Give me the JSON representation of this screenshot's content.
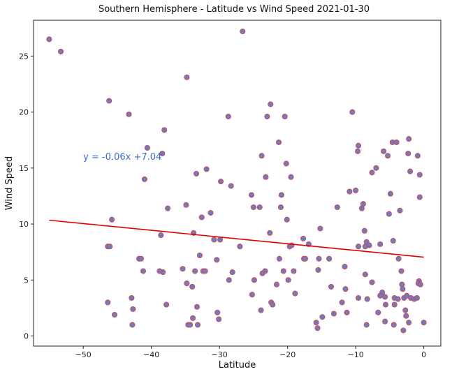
{
  "chart_data": {
    "type": "scatter",
    "title": "Southern Hemisphere - Latitude vs Wind Speed 2021-01-30",
    "xlabel": "Latitude",
    "ylabel": "Wind Speed",
    "xlim": [
      -57.3,
      2.5
    ],
    "ylim": [
      -0.9,
      28.2
    ],
    "xticks": [
      -50,
      -40,
      -30,
      -20,
      -10,
      0
    ],
    "yticks": [
      0,
      5,
      10,
      15,
      20,
      25
    ],
    "grid": false,
    "marker_color": "#6a7fb8",
    "marker_edge_color": "#e0405a",
    "line_color": "#e00000",
    "annotation": {
      "text": "y = -0.06x +7.04",
      "x": -50,
      "y": 16,
      "color": "#3a6bd0"
    },
    "regression": {
      "slope": -0.06,
      "intercept": 7.04,
      "x": [
        -55,
        0
      ]
    },
    "points": [
      [
        -55,
        26.5
      ],
      [
        -53.3,
        25.4
      ],
      [
        -46.2,
        21
      ],
      [
        -43.3,
        19.8
      ],
      [
        -46.4,
        8
      ],
      [
        -46.1,
        8
      ],
      [
        -45.8,
        10.4
      ],
      [
        -46.4,
        3
      ],
      [
        -45.4,
        1.9
      ],
      [
        -42.9,
        3.4
      ],
      [
        -42.7,
        2.4
      ],
      [
        -42.8,
        1
      ],
      [
        -41.8,
        6.9
      ],
      [
        -41.5,
        6.9
      ],
      [
        -41.2,
        5.8
      ],
      [
        -41,
        14
      ],
      [
        -40.6,
        16.8
      ],
      [
        -38.6,
        9
      ],
      [
        -38.3,
        5.7
      ],
      [
        -38.8,
        5.8
      ],
      [
        -38.1,
        18.4
      ],
      [
        -38.4,
        16.3
      ],
      [
        -37.6,
        11.4
      ],
      [
        -37.8,
        2.8
      ],
      [
        -35.4,
        6
      ],
      [
        -34.8,
        23.1
      ],
      [
        -34.9,
        11.7
      ],
      [
        -34.8,
        4.7
      ],
      [
        -34.6,
        1
      ],
      [
        -34.3,
        1
      ],
      [
        -34,
        4.4
      ],
      [
        -33.9,
        1.6
      ],
      [
        -33.8,
        9.2
      ],
      [
        -33.6,
        5.8
      ],
      [
        -33.4,
        14.5
      ],
      [
        -33.3,
        2.6
      ],
      [
        -33.2,
        1
      ],
      [
        -32.9,
        7.2
      ],
      [
        -32.6,
        10.6
      ],
      [
        -32.4,
        5.8
      ],
      [
        -32.1,
        5.8
      ],
      [
        -31.9,
        14.9
      ],
      [
        -31.3,
        11
      ],
      [
        -30.8,
        8.6
      ],
      [
        -30.3,
        2.1
      ],
      [
        -30.1,
        1.5
      ],
      [
        -30.4,
        6.8
      ],
      [
        -29.9,
        8.6
      ],
      [
        -29.8,
        13.8
      ],
      [
        -28.7,
        19.6
      ],
      [
        -28.6,
        5
      ],
      [
        -28.3,
        13.4
      ],
      [
        -28.1,
        5.7
      ],
      [
        -27,
        8
      ],
      [
        -26.6,
        27.2
      ],
      [
        -25.3,
        12.6
      ],
      [
        -25.2,
        3.7
      ],
      [
        -24.9,
        5
      ],
      [
        -25,
        11.5
      ],
      [
        -24.1,
        11.5
      ],
      [
        -23.9,
        2.3
      ],
      [
        -23.8,
        16.1
      ],
      [
        -23.7,
        5.6
      ],
      [
        -23.3,
        5.8
      ],
      [
        -23.2,
        14.2
      ],
      [
        -23,
        19.6
      ],
      [
        -22.6,
        9.2
      ],
      [
        -22.5,
        20.7
      ],
      [
        -22.4,
        3
      ],
      [
        -22.2,
        2.8
      ],
      [
        -21.6,
        4.6
      ],
      [
        -21.3,
        17.3
      ],
      [
        -21.2,
        6.9
      ],
      [
        -21,
        11.5
      ],
      [
        -20.9,
        12.6
      ],
      [
        -20.6,
        5.8
      ],
      [
        -20.4,
        19.6
      ],
      [
        -20.2,
        15.4
      ],
      [
        -20.1,
        10.4
      ],
      [
        -19.9,
        5
      ],
      [
        -19.7,
        8
      ],
      [
        -19.5,
        14.2
      ],
      [
        -19.4,
        8.1
      ],
      [
        -19.1,
        5.8
      ],
      [
        -18.9,
        3.8
      ],
      [
        -17.7,
        8.7
      ],
      [
        -17.6,
        6.9
      ],
      [
        -17.4,
        6.9
      ],
      [
        -16.9,
        8.2
      ],
      [
        -15.8,
        1.2
      ],
      [
        -15.6,
        0.7
      ],
      [
        -15.5,
        5.9
      ],
      [
        -15.4,
        6.9
      ],
      [
        -15.2,
        9.6
      ],
      [
        -14.9,
        1.7
      ],
      [
        -13.9,
        6.9
      ],
      [
        -13.6,
        4.4
      ],
      [
        -13.2,
        2
      ],
      [
        -12.7,
        11.5
      ],
      [
        -12,
        3
      ],
      [
        -11.6,
        6.2
      ],
      [
        -11.5,
        4.2
      ],
      [
        -10.9,
        12.9
      ],
      [
        -10.5,
        20
      ],
      [
        -10,
        13
      ],
      [
        -9.7,
        16.5
      ],
      [
        -9.6,
        17
      ],
      [
        -9.6,
        8
      ],
      [
        -9.6,
        3.4
      ],
      [
        -9.1,
        11.4
      ],
      [
        -8.9,
        11.8
      ],
      [
        -8.7,
        9.4
      ],
      [
        -8.6,
        8
      ],
      [
        -8.6,
        5.5
      ],
      [
        -8.4,
        1
      ],
      [
        -8.4,
        8.4
      ],
      [
        -8.3,
        3.3
      ],
      [
        -8,
        8.1
      ],
      [
        -7.6,
        14.6
      ],
      [
        -7.6,
        4.8
      ],
      [
        -7,
        15
      ],
      [
        -6.7,
        2.1
      ],
      [
        -6.4,
        8.2
      ],
      [
        -6.1,
        3.9
      ],
      [
        -5.9,
        16.5
      ],
      [
        -5.7,
        1.3
      ],
      [
        -5.7,
        3.5
      ],
      [
        -5.3,
        16.1
      ],
      [
        -5.1,
        10.9
      ],
      [
        -4.9,
        12.7
      ],
      [
        -4.6,
        17.3
      ],
      [
        -4.5,
        8.5
      ],
      [
        -4.4,
        1
      ],
      [
        -4.3,
        2.8
      ],
      [
        -4,
        17.3
      ],
      [
        -3.7,
        6.9
      ],
      [
        -3.5,
        11.2
      ],
      [
        -3.3,
        5.8
      ],
      [
        -3.2,
        4.6
      ],
      [
        -3.1,
        4.2
      ],
      [
        -3,
        0.5
      ],
      [
        -2.9,
        3.4
      ],
      [
        -2.7,
        2.3
      ],
      [
        -2.6,
        1.8
      ],
      [
        -2.5,
        3.6
      ],
      [
        -2.3,
        16.3
      ],
      [
        -2.2,
        17.6
      ],
      [
        -2.2,
        1.2
      ],
      [
        -2,
        14.7
      ],
      [
        -1.9,
        3.4
      ],
      [
        -1.4,
        3.3
      ],
      [
        -1,
        3.4
      ],
      [
        -0.9,
        16.1
      ],
      [
        -0.6,
        14.4
      ],
      [
        -0.6,
        12.4
      ],
      [
        -0.7,
        4.9
      ],
      [
        -0.8,
        4.7
      ],
      [
        -0.5,
        4.6
      ],
      [
        0,
        1.2
      ],
      [
        -4.3,
        3.4
      ],
      [
        -5.6,
        2.8
      ],
      [
        -11.3,
        2.1
      ],
      [
        -3.8,
        3.3
      ],
      [
        -6.4,
        3.6
      ]
    ]
  }
}
